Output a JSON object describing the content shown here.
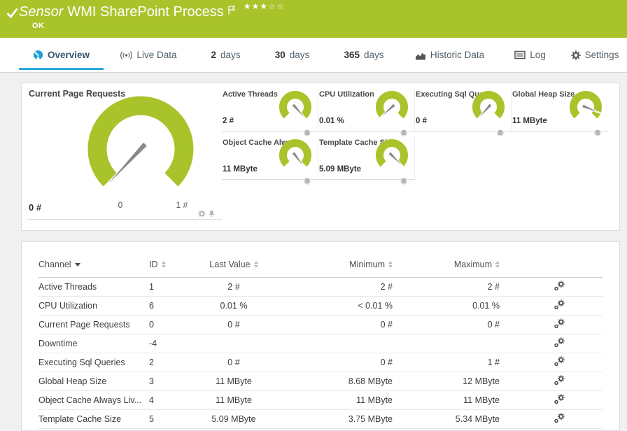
{
  "header": {
    "kind_label": "Sensor",
    "title": "WMI SharePoint Process",
    "status": "OK",
    "stars_filled": "★★★",
    "stars_empty": "☆☆",
    "color_bg": "#a9c32a"
  },
  "tabs": {
    "overview": {
      "label": "Overview",
      "icon": "gauge-icon",
      "active": true
    },
    "livedata": {
      "label": "Live Data",
      "icon": "live-icon"
    },
    "d2": {
      "num": "2",
      "label": "days"
    },
    "d30": {
      "num": "30",
      "label": "days"
    },
    "d365": {
      "num": "365",
      "label": "days"
    },
    "historic": {
      "label": "Historic Data",
      "icon": "area-chart-icon"
    },
    "log": {
      "label": "Log",
      "icon": "log-icon"
    },
    "settings": {
      "label": "Settings",
      "icon": "gear-icon"
    },
    "accent_color": "#29a8dd"
  },
  "gauges": {
    "primary": {
      "title": "Current Page Requests",
      "value": "0 #",
      "scale_min": "0",
      "scale_max": "1 #",
      "needle_angle": 133
    },
    "small": [
      {
        "title": "Active Threads",
        "value": "2 #",
        "needle_angle": 49
      },
      {
        "title": "CPU Utilization",
        "value": "0.01 %",
        "needle_angle": 138
      },
      {
        "title": "Executing Sql Queries",
        "value": "0 #",
        "needle_angle": 132
      },
      {
        "title": "Global Heap Size",
        "value": "11 MByte",
        "needle_angle": 22
      },
      {
        "title": "Object Cache Always L...",
        "value": "11 MByte",
        "needle_angle": 53
      },
      {
        "title": "Template Cache Size",
        "value": "5.09 MByte",
        "needle_angle": 45
      }
    ],
    "gauge_color": "#a9c32a",
    "needle_color": "#8a8a8a"
  },
  "table": {
    "columns": {
      "channel": "Channel",
      "id": "ID",
      "last": "Last Value",
      "min": "Minimum",
      "max": "Maximum"
    },
    "sort": {
      "column": "Channel",
      "direction": "desc"
    },
    "rows": [
      {
        "channel": "Active Threads",
        "id": "1",
        "last": "2 #",
        "min": "2 #",
        "max": "2 #"
      },
      {
        "channel": "CPU Utilization",
        "id": "6",
        "last": "0.01 %",
        "min": "< 0.01 %",
        "max": "0.01 %"
      },
      {
        "channel": "Current Page Requests",
        "id": "0",
        "last": "0 #",
        "min": "0 #",
        "max": "0 #"
      },
      {
        "channel": "Downtime",
        "id": "-4",
        "last": "",
        "min": "",
        "max": ""
      },
      {
        "channel": "Executing Sql Queries",
        "id": "2",
        "last": "0 #",
        "min": "0 #",
        "max": "1 #"
      },
      {
        "channel": "Global Heap Size",
        "id": "3",
        "last": "11 MByte",
        "min": "8.68 MByte",
        "max": "12 MByte"
      },
      {
        "channel": "Object Cache Always Liv...",
        "id": "4",
        "last": "11 MByte",
        "min": "11 MByte",
        "max": "11 MByte"
      },
      {
        "channel": "Template Cache Size",
        "id": "5",
        "last": "5.09 MByte",
        "min": "3.75 MByte",
        "max": "5.34 MByte"
      }
    ]
  }
}
